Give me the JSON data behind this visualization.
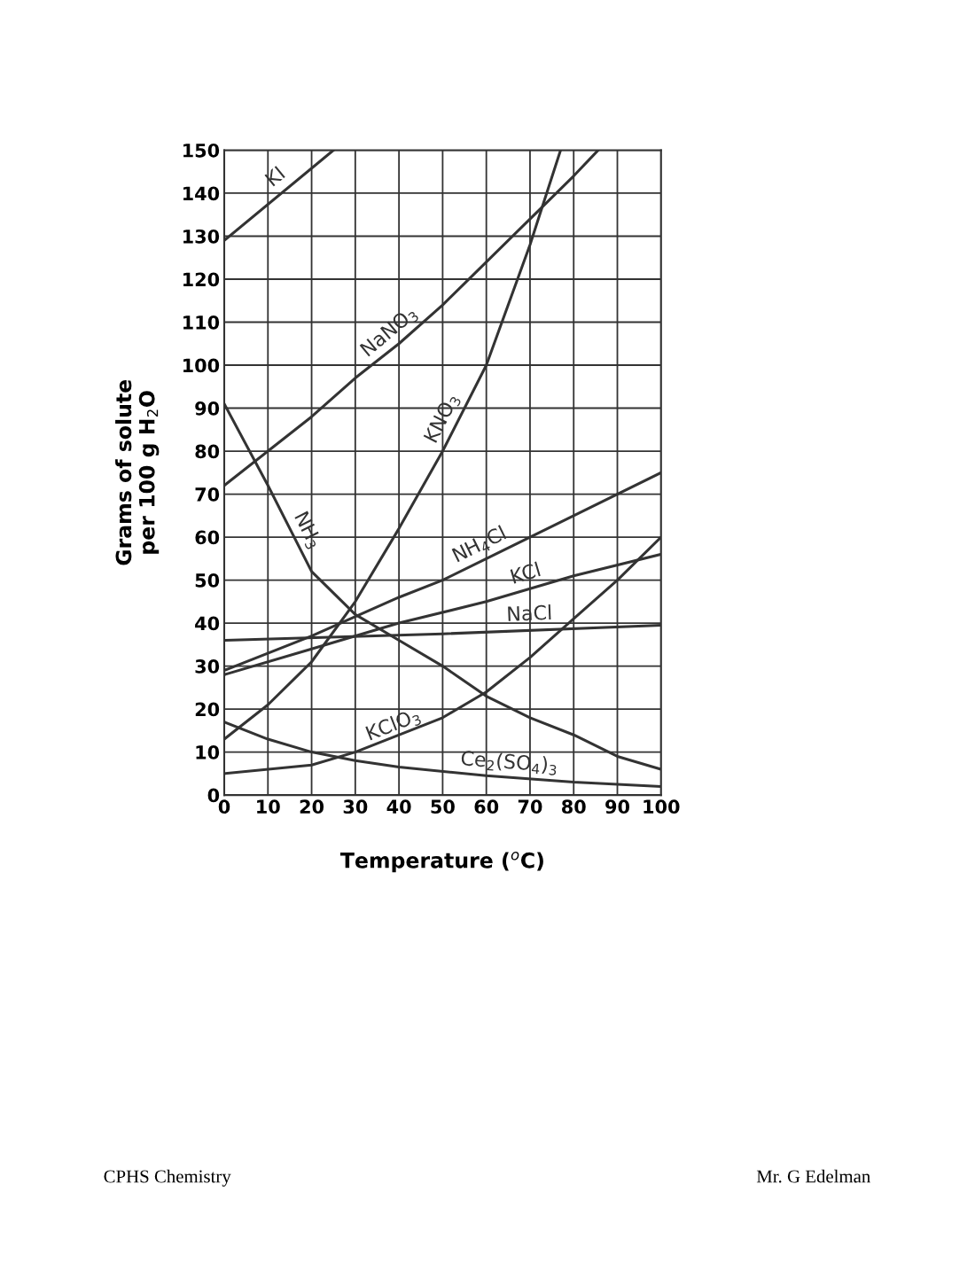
{
  "chart_data": {
    "type": "line",
    "xlabel": "Temperature ($^{o}$C)",
    "ylabel": "Grams of solute\nper 100 g H$_{2}$O",
    "xlim": [
      0,
      100
    ],
    "ylim": [
      0,
      150
    ],
    "xticks": [
      0,
      10,
      20,
      30,
      40,
      50,
      60,
      70,
      80,
      90,
      100
    ],
    "yticks": [
      0,
      10,
      20,
      30,
      40,
      50,
      60,
      70,
      80,
      90,
      100,
      110,
      120,
      130,
      140,
      150
    ],
    "grid": true,
    "marker": "none",
    "line_style": "solid",
    "series": [
      {
        "color": "#333333",
        "x": [
          0,
          25
        ],
        "values": [
          129,
          150
        ]
      },
      {
        "color": "#333333",
        "x": [
          0,
          10,
          20,
          30,
          40,
          50,
          60,
          70,
          80,
          85.6
        ],
        "values": [
          72,
          80,
          88,
          97,
          105,
          114,
          124,
          134,
          144,
          150
        ]
      },
      {
        "color": "#333333",
        "x": [
          0,
          10,
          20,
          30,
          40,
          50,
          60,
          70,
          77
        ],
        "values": [
          13,
          21,
          31,
          45,
          62,
          80,
          100,
          128,
          150
        ]
      },
      {
        "color": "#333333",
        "x": [
          0,
          10,
          20,
          30,
          40,
          50,
          60,
          70,
          80,
          90,
          100
        ],
        "values": [
          91,
          72,
          52,
          42,
          36,
          30,
          23,
          18,
          14,
          9,
          6
        ]
      },
      {
        "color": "#333333",
        "x": [
          0,
          20,
          40,
          50,
          60,
          80,
          100
        ],
        "values": [
          29,
          37,
          46,
          50,
          55,
          65,
          75
        ]
      },
      {
        "color": "#333333",
        "x": [
          0,
          20,
          40,
          60,
          80,
          100
        ],
        "values": [
          28,
          34,
          40,
          45,
          51,
          56
        ]
      },
      {
        "color": "#333333",
        "x": [
          0,
          50,
          100
        ],
        "values": [
          36,
          37.5,
          39.5
        ]
      },
      {
        "color": "#333333",
        "x": [
          0,
          20,
          30,
          50,
          60,
          70,
          80,
          90,
          100
        ],
        "values": [
          5,
          7,
          10,
          18,
          24,
          32,
          41,
          50,
          60
        ]
      },
      {
        "color": "#333333",
        "x": [
          0,
          10,
          20,
          30,
          40,
          60,
          80,
          100
        ],
        "values": [
          17,
          13,
          10,
          8,
          6.5,
          4.5,
          3,
          2
        ]
      }
    ],
    "annotations": [
      {
        "text": "KI",
        "x": 14,
        "y": 141
      },
      {
        "text": "NaNO$_{3}$",
        "x": 40,
        "y": 105
      },
      {
        "text": "KNO$_{3}$",
        "x": 53,
        "y": 86
      },
      {
        "text": "NH$_{3}$",
        "x": 16,
        "y": 60
      },
      {
        "text": "NH$_{4}$Cl",
        "x": 60,
        "y": 55
      },
      {
        "text": "KCl",
        "x": 70,
        "y": 48
      },
      {
        "text": "NaCl",
        "x": 70,
        "y": 38.5
      },
      {
        "text": "KClO$_{3}$",
        "x": 40,
        "y": 13
      },
      {
        "text": "Ce$_{2}$(SO$_{4}$)$_{3}$",
        "x": 65,
        "y": 4
      },
      "CPHS Chemistry",
      "Mr. G Edelman"
    ]
  }
}
